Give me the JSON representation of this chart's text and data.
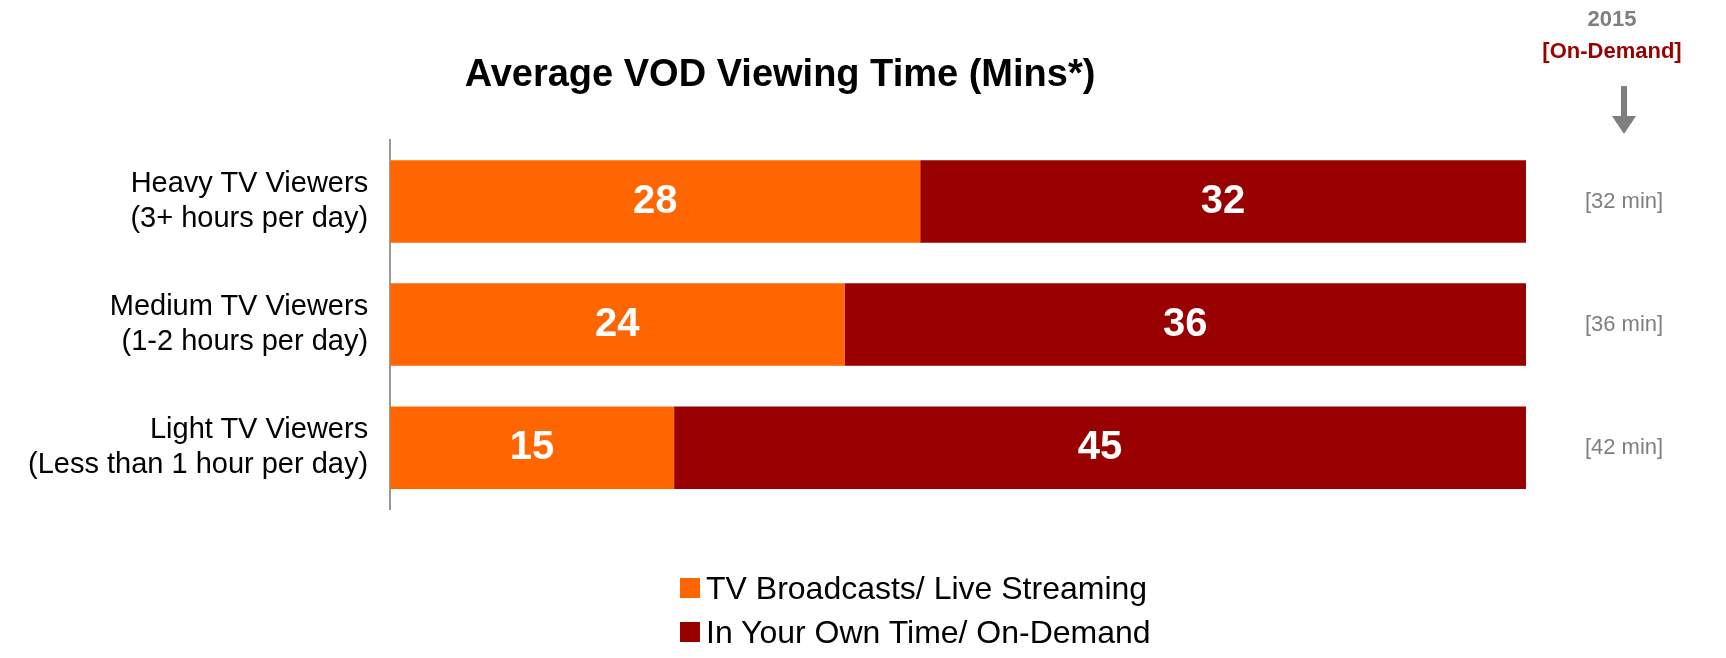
{
  "chart_data": {
    "type": "bar",
    "orientation": "horizontal",
    "stacked": true,
    "title": "Average VOD Viewing Time (Mins*)",
    "categories": [
      "Heavy TV Viewers\n(3+ hours per day)",
      "Medium TV Viewers\n(1-2 hours per day)",
      "Light TV Viewers\n(Less than 1 hour per day)"
    ],
    "series": [
      {
        "name": "TV Broadcasts/ Live Streaming",
        "color": "#ff6600",
        "values": [
          28,
          24,
          15
        ]
      },
      {
        "name": "In Your Own Time/ On-Demand",
        "color": "#990000",
        "values": [
          32,
          36,
          45
        ]
      }
    ],
    "data_labels": true,
    "grid": false,
    "legend": "bottom",
    "tick_labels": "y",
    "annotations": [
      "2015",
      "[On-Demand]",
      "[32 min]",
      "[36 min]",
      "[42 min]"
    ]
  }
}
